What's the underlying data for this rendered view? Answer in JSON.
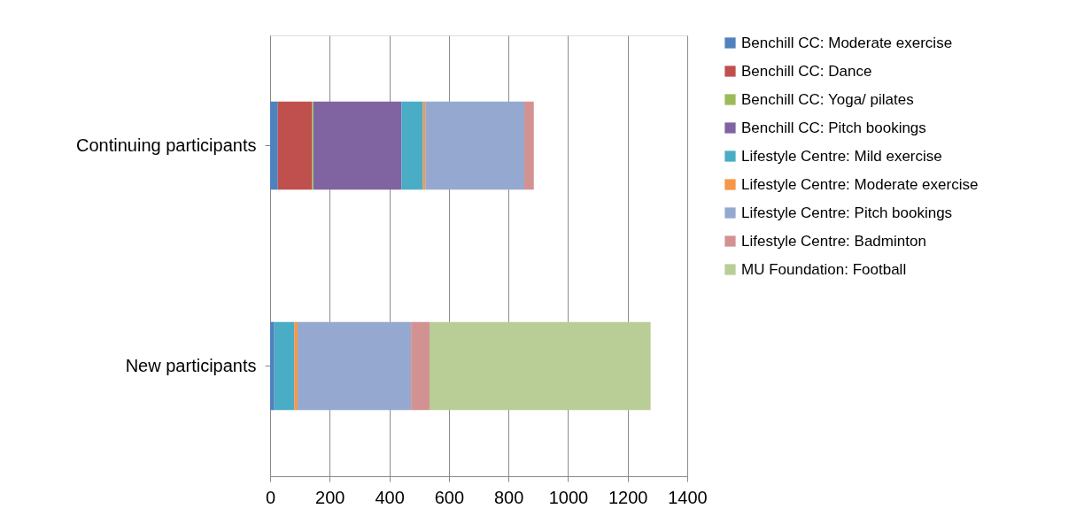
{
  "chart_data": {
    "type": "bar",
    "orientation": "horizontal",
    "stacked": true,
    "categories": [
      "Continuing participants",
      "New participants"
    ],
    "series": [
      {
        "name": "Benchill CC: Moderate exercise",
        "color": "#4f81bd",
        "values": [
          26,
          14
        ]
      },
      {
        "name": "Benchill CC: Dance",
        "color": "#c0504d",
        "values": [
          114,
          0
        ]
      },
      {
        "name": "Benchill CC: Yoga/ pilates",
        "color": "#9bbb59",
        "values": [
          5,
          0
        ]
      },
      {
        "name": "Benchill CC: Pitch bookings",
        "color": "#8064a2",
        "values": [
          296,
          0
        ]
      },
      {
        "name": "Lifestyle Centre: Mild exercise",
        "color": "#4bacc6",
        "values": [
          72,
          67
        ]
      },
      {
        "name": "Lifestyle Centre: Moderate exercise",
        "color": "#f79646",
        "values": [
          8,
          11
        ]
      },
      {
        "name": "Lifestyle Centre: Pitch bookings",
        "color": "#95a9d0",
        "values": [
          332,
          381
        ]
      },
      {
        "name": "Lifestyle Centre: Badminton",
        "color": "#d39292",
        "values": [
          32,
          62
        ]
      },
      {
        "name": "MU Foundation: Football",
        "color": "#b9cd96",
        "values": [
          0,
          742
        ]
      }
    ],
    "xlim": [
      0,
      1400
    ],
    "xticks": [
      0,
      200,
      400,
      600,
      800,
      1000,
      1200,
      1400
    ],
    "grid": "x",
    "legend": "right"
  }
}
